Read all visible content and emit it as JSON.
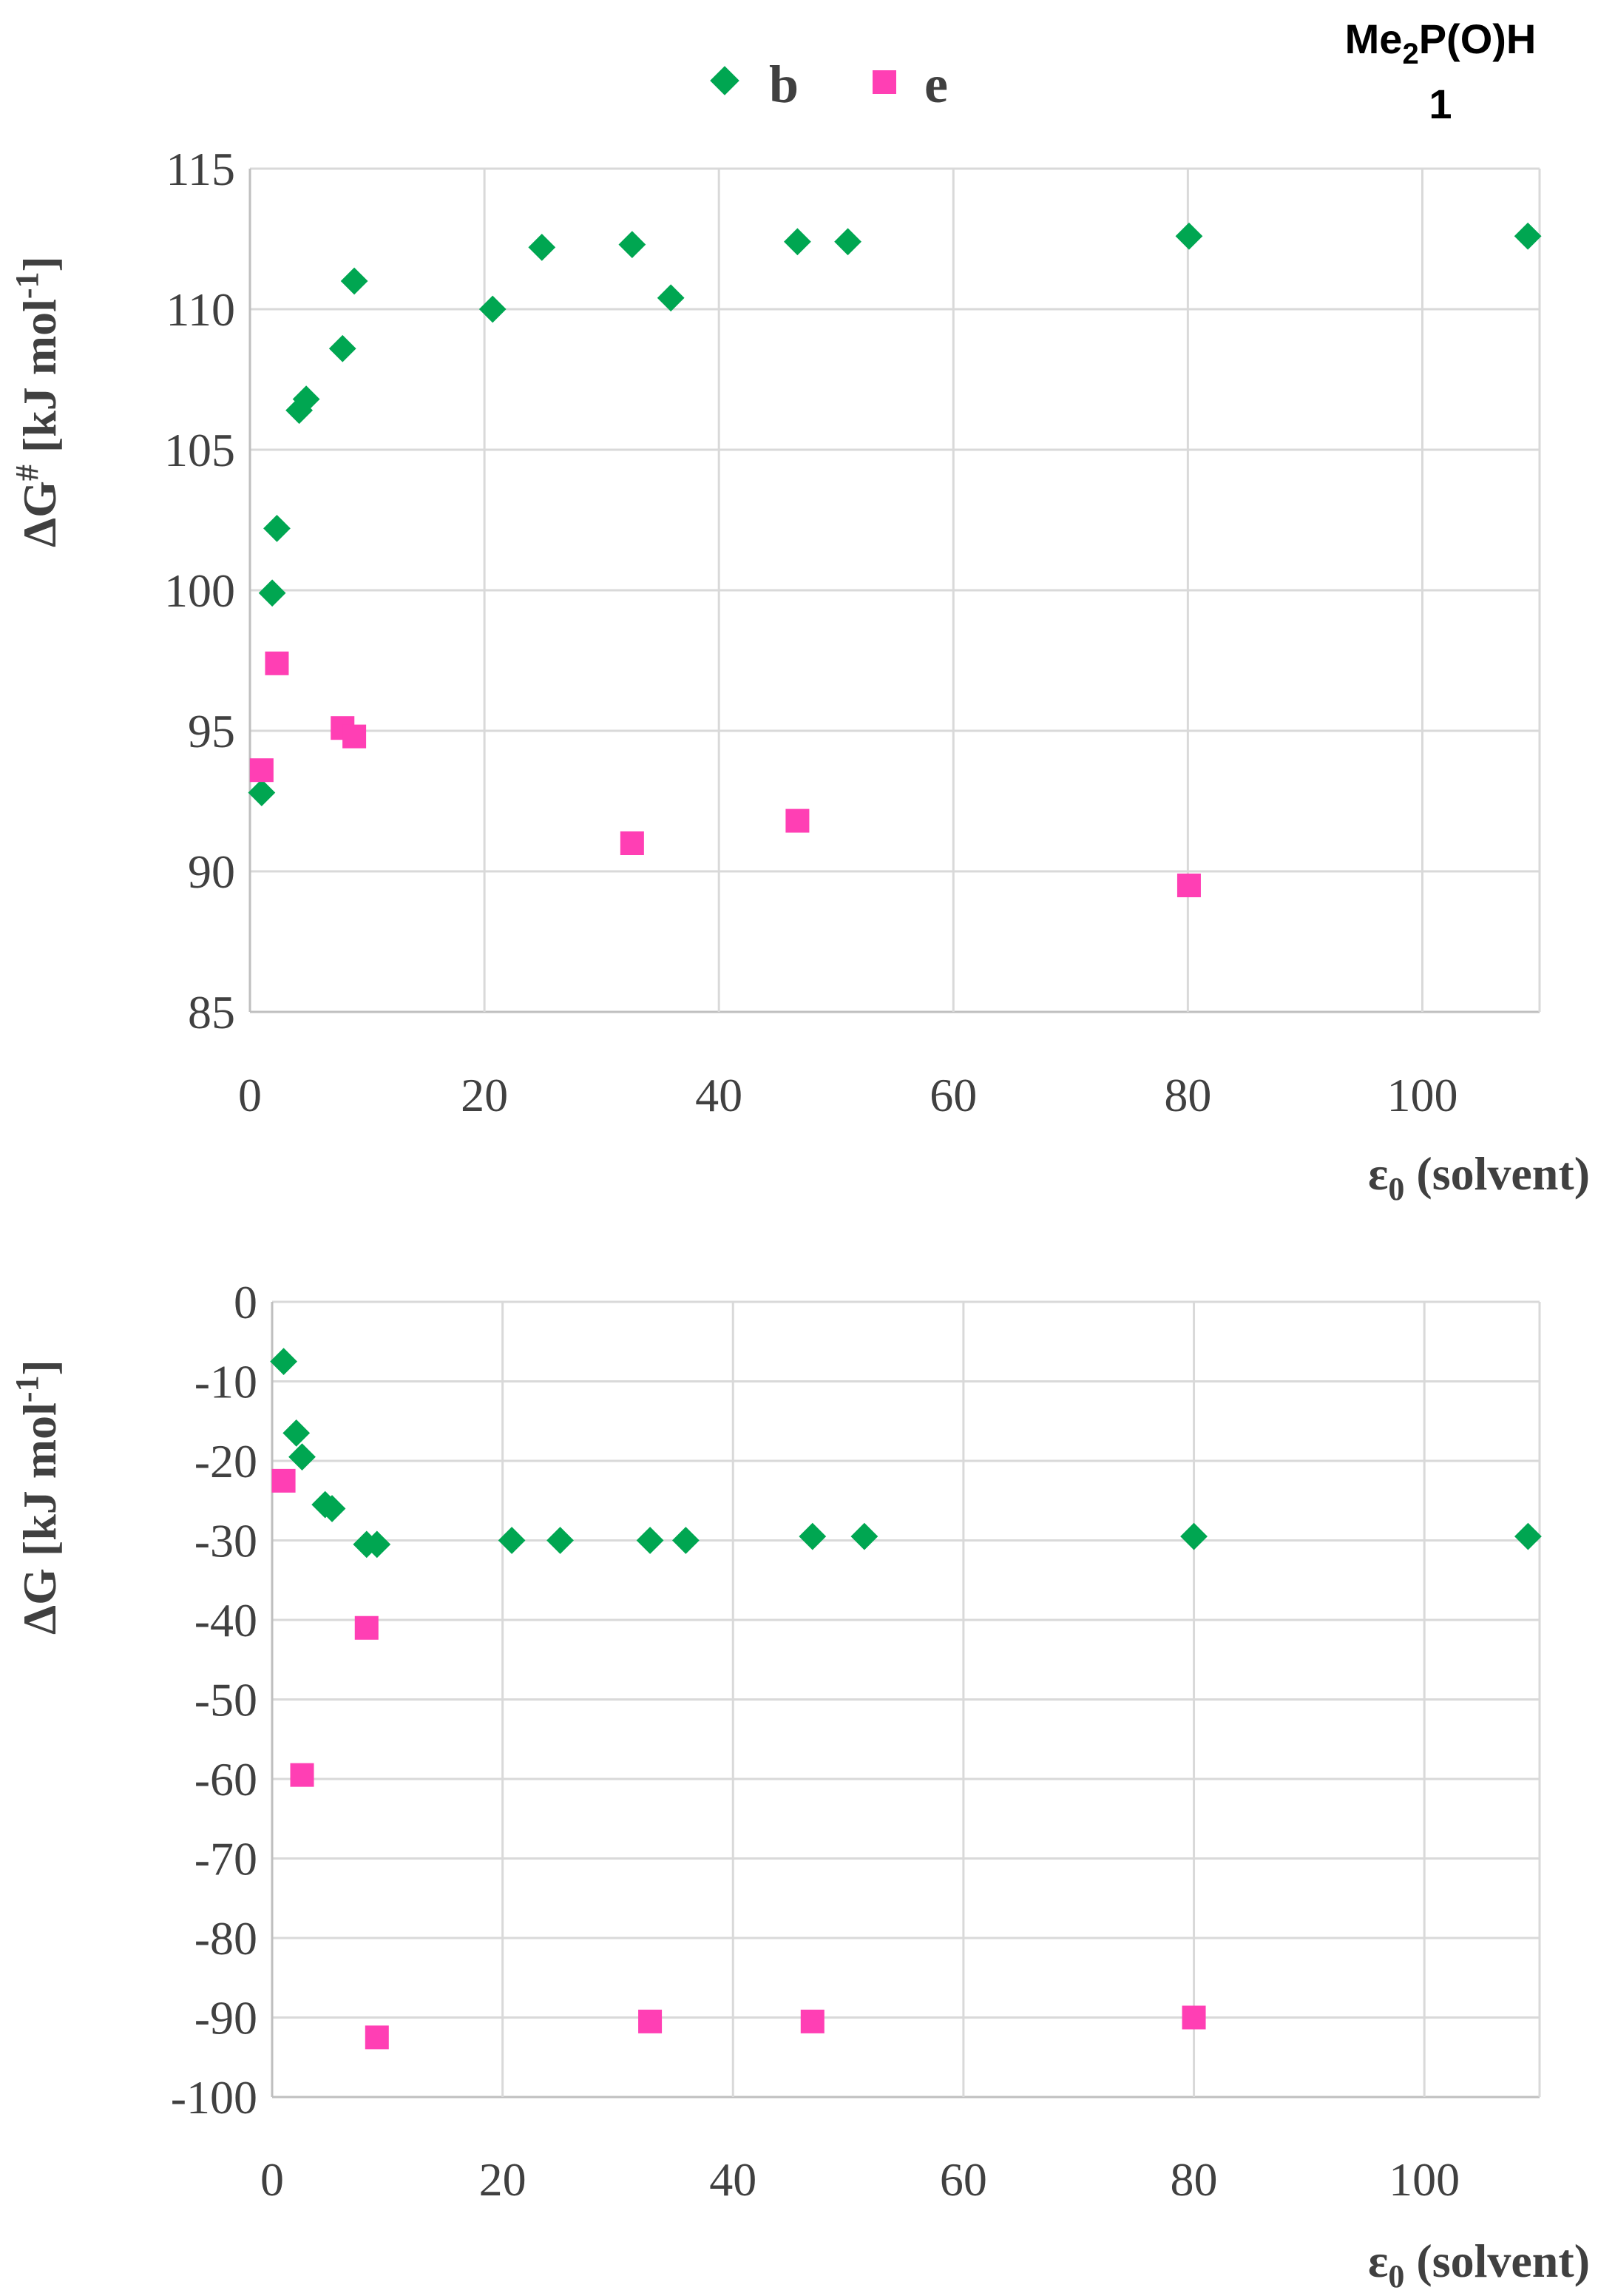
{
  "compound": {
    "formula_main": "Me",
    "formula_sub": "2",
    "formula_rest": "P(O)H",
    "number": "1"
  },
  "legend": {
    "entries": [
      {
        "label": "b",
        "marker": "diamond",
        "color": "#00a651"
      },
      {
        "label": "e",
        "marker": "square",
        "color": "#ff3fb4"
      }
    ]
  },
  "chart_data": [
    {
      "type": "scatter",
      "title": "",
      "xlabel_main": "ε",
      "xlabel_sub": "0",
      "xlabel_rest": " (solvent)",
      "ylabel_main": "ΔG",
      "ylabel_sup": "#",
      "ylabel_rest": " [kJ mol",
      "ylabel_sup2": "-1",
      "ylabel_end": "]",
      "xlim": [
        0,
        110
      ],
      "ylim": [
        85,
        115
      ],
      "xticks": [
        0,
        20,
        40,
        60,
        80,
        100
      ],
      "xtick_labels": [
        "0",
        "20",
        "40",
        "60",
        "80",
        "100"
      ],
      "yticks": [
        85,
        90,
        95,
        100,
        105,
        110,
        115
      ],
      "ytick_labels": [
        "85",
        "90",
        "95",
        "100",
        "105",
        "110",
        "115"
      ],
      "grid": true,
      "series": [
        {
          "name": "b",
          "x": [
            1.0,
            1.9,
            2.3,
            4.2,
            4.8,
            7.9,
            8.9,
            20.7,
            24.9,
            32.6,
            35.9,
            46.7,
            51.0,
            80.1,
            109.0
          ],
          "y": [
            92.8,
            99.9,
            102.2,
            106.4,
            106.8,
            108.6,
            111.0,
            110.0,
            112.2,
            112.3,
            110.4,
            112.4,
            112.4,
            112.6,
            112.6
          ]
        },
        {
          "name": "e",
          "x": [
            1.0,
            2.3,
            7.9,
            8.9,
            32.6,
            46.7,
            80.1
          ],
          "y": [
            93.6,
            97.4,
            95.1,
            94.8,
            91.0,
            91.8,
            89.5
          ]
        }
      ]
    },
    {
      "type": "scatter",
      "title": "",
      "xlabel_main": "ε",
      "xlabel_sub": "0",
      "xlabel_rest": " (solvent)",
      "ylabel_main": "ΔG",
      "ylabel_sup": "",
      "ylabel_rest": " [kJ mol",
      "ylabel_sup2": "-1",
      "ylabel_end": "]",
      "xlim": [
        0,
        110
      ],
      "ylim": [
        -100,
        0
      ],
      "xticks": [
        0,
        20,
        40,
        60,
        80,
        100
      ],
      "xtick_labels": [
        "0",
        "20",
        "40",
        "60",
        "80",
        "100"
      ],
      "yticks": [
        0,
        -10,
        -20,
        -30,
        -40,
        -50,
        -60,
        -70,
        -80,
        -90,
        -100
      ],
      "ytick_labels": [
        "0",
        "-10",
        "-20",
        "-30",
        "-40",
        "-50",
        "-60",
        "-70",
        "-80",
        "-90",
        "-100"
      ],
      "grid": true,
      "series": [
        {
          "name": "b",
          "x": [
            1.0,
            2.1,
            2.6,
            4.6,
            5.2,
            8.2,
            9.1,
            20.8,
            25.0,
            32.8,
            35.9,
            46.9,
            51.4,
            80.0,
            109.0
          ],
          "y": [
            -7.5,
            -16.5,
            -19.5,
            -25.5,
            -26.0,
            -30.5,
            -30.5,
            -30.0,
            -30.0,
            -30.0,
            -30.0,
            -29.5,
            -29.5,
            -29.5,
            -29.5
          ]
        },
        {
          "name": "e",
          "x": [
            1.0,
            2.6,
            8.2,
            9.1,
            32.8,
            46.9,
            80.0
          ],
          "y": [
            -22.5,
            -59.5,
            -41.0,
            -92.5,
            -90.5,
            -90.5,
            -90.0
          ]
        }
      ]
    }
  ]
}
